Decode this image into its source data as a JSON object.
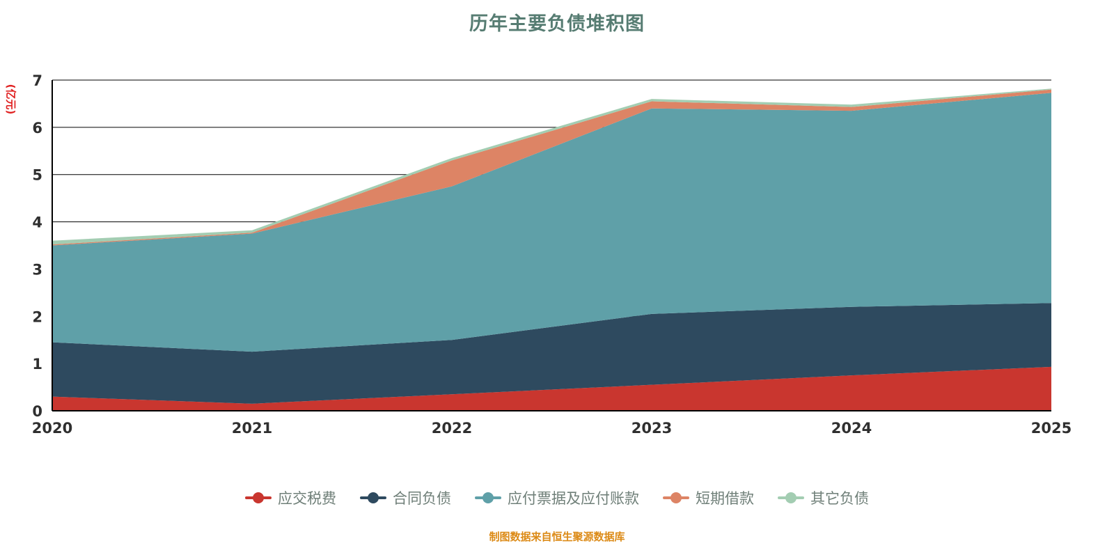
{
  "title": "历年主要负债堆积图",
  "y_unit": "(亿元)",
  "footer": "制图数据来自恒生聚源数据库",
  "colors": {
    "title": "#567c72",
    "axis": "#000000",
    "tick_label": "#2f2f2f",
    "y_unit": "#e02222",
    "footer": "#dc8a16",
    "legend_label": "#6f7f78"
  },
  "chart_data": {
    "type": "area",
    "stacked": true,
    "title": "历年主要负债堆积图",
    "ylabel": "(亿元)",
    "xlabel": "",
    "grid": true,
    "legend_position": "bottom",
    "ylim": [
      0,
      7
    ],
    "y_ticks": [
      0,
      1,
      2,
      3,
      4,
      5,
      6,
      7
    ],
    "categories": [
      "2020",
      "2021",
      "2022",
      "2023",
      "2024",
      "2025"
    ],
    "series": [
      {
        "name": "应交税费",
        "color": "#c9362f",
        "values": [
          0.3,
          0.15,
          0.35,
          0.55,
          0.75,
          0.93
        ]
      },
      {
        "name": "合同负债",
        "color": "#2e4a5f",
        "values": [
          1.15,
          1.1,
          1.15,
          1.5,
          1.45,
          1.35
        ]
      },
      {
        "name": "应付票据及应付账款",
        "color": "#5fa0a8",
        "values": [
          2.05,
          2.5,
          3.25,
          4.35,
          4.15,
          4.45
        ]
      },
      {
        "name": "短期借款",
        "color": "#dd8465",
        "values": [
          0.02,
          0.02,
          0.55,
          0.15,
          0.08,
          0.07
        ]
      },
      {
        "name": "其它负债",
        "color": "#a3cdb2",
        "values": [
          0.08,
          0.05,
          0.05,
          0.05,
          0.05,
          0.02
        ]
      }
    ]
  }
}
